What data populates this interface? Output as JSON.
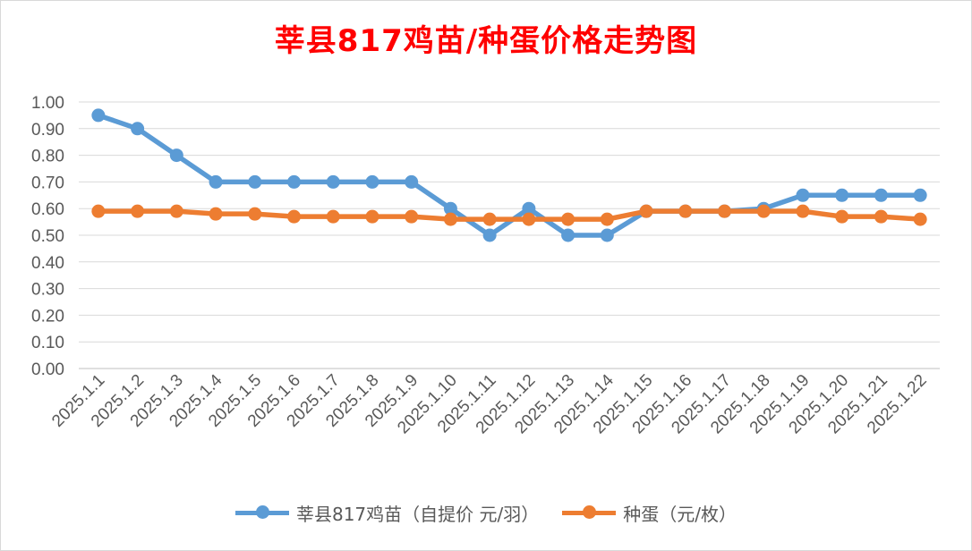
{
  "title": "莘县817鸡苗/种蛋价格走势图",
  "chart_data": {
    "type": "line",
    "title": "莘县817鸡苗/种蛋价格走势图",
    "categories": [
      "2025.1.1",
      "2025.1.2",
      "2025.1.3",
      "2025.1.4",
      "2025.1.5",
      "2025.1.6",
      "2025.1.7",
      "2025.1.8",
      "2025.1.9",
      "2025.1.10",
      "2025.1.11",
      "2025.1.12",
      "2025.1.13",
      "2025.1.14",
      "2025.1.15",
      "2025.1.16",
      "2025.1.17",
      "2025.1.18",
      "2025.1.19",
      "2025.1.20",
      "2025.1.21",
      "2025.1.22"
    ],
    "series": [
      {
        "name": "莘县817鸡苗（自提价 元/羽）",
        "color": "#5b9bd5",
        "values": [
          0.95,
          0.9,
          0.8,
          0.7,
          0.7,
          0.7,
          0.7,
          0.7,
          0.7,
          0.6,
          0.5,
          0.6,
          0.5,
          0.5,
          0.59,
          0.59,
          0.59,
          0.6,
          0.65,
          0.65,
          0.65,
          0.65
        ]
      },
      {
        "name": "种蛋（元/枚）",
        "color": "#ed7d31",
        "values": [
          0.59,
          0.59,
          0.59,
          0.58,
          0.58,
          0.57,
          0.57,
          0.57,
          0.57,
          0.56,
          0.56,
          0.56,
          0.56,
          0.56,
          0.59,
          0.59,
          0.59,
          0.59,
          0.59,
          0.57,
          0.57,
          0.56
        ]
      }
    ],
    "ylim": [
      0,
      1.0
    ],
    "yticks": [
      "0.00",
      "0.10",
      "0.20",
      "0.30",
      "0.40",
      "0.50",
      "0.60",
      "0.70",
      "0.80",
      "0.90",
      "1.00"
    ],
    "grid": true,
    "legend_position": "bottom"
  }
}
